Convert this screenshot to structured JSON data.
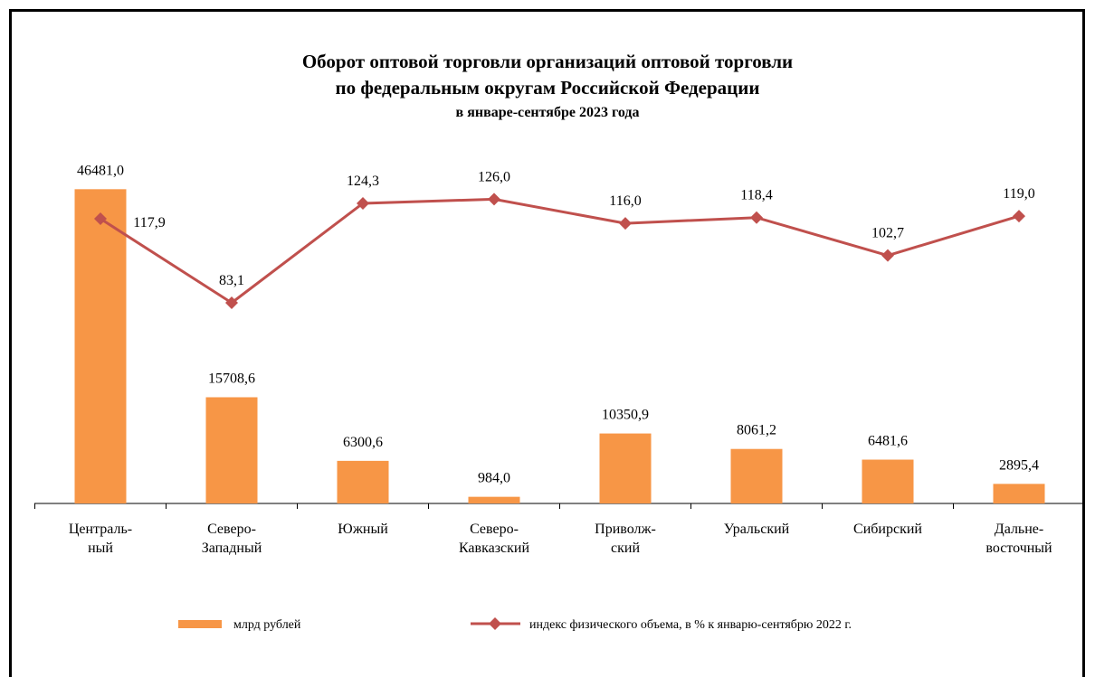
{
  "chart_data": {
    "type": "bar_line",
    "title": "Оборот оптовой торговли организаций оптовой торговли\nпо федеральным округам Российской Федерации",
    "subtitle": "в январе-сентябре 2023 года",
    "categories": [
      "Централь-\nный",
      "Северо-\nЗападный",
      "Южный",
      "Северо-\nКавказский",
      "Приволж-\nский",
      "Уральский",
      "Сибирский",
      "Дальне-\nвосточный"
    ],
    "series": [
      {
        "name": "млрд рублей",
        "type": "bar",
        "color": "#f79646",
        "values": [
          46481.0,
          15708.6,
          6300.6,
          984.0,
          10350.9,
          8061.2,
          6481.6,
          2895.4
        ],
        "value_labels": [
          "46481,0",
          "15708,6",
          "6300,6",
          "984,0",
          "10350,9",
          "8061,2",
          "6481,6",
          "2895,4"
        ]
      },
      {
        "name": "индекс физического объема, в % к январю-сентябрю 2022 г.",
        "type": "line",
        "axis": "y2",
        "color": "#c0504d",
        "values": [
          117.9,
          83.1,
          124.3,
          126.0,
          116.0,
          118.4,
          102.7,
          119.0
        ],
        "value_labels": [
          "117,9",
          "83,1",
          "124,3",
          "126,0",
          "116,0",
          "118,4",
          "102,7",
          "119,0"
        ]
      }
    ],
    "ylim": [
      0,
      50000
    ],
    "y2lim": [
      0,
      140
    ],
    "legend": "bottom"
  }
}
